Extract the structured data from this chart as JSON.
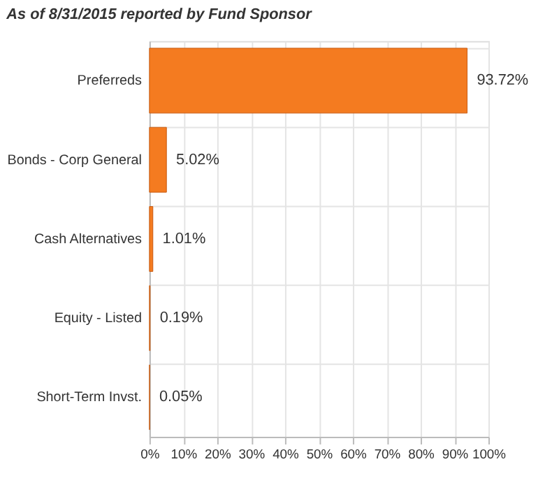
{
  "chart_data": {
    "type": "bar",
    "orientation": "horizontal",
    "title": "As of 8/31/2015 reported by Fund Sponsor",
    "categories": [
      "Preferreds",
      "Bonds - Corp General",
      "Cash Alternatives",
      "Equity - Listed",
      "Short-Term Invst."
    ],
    "values": [
      93.72,
      5.02,
      1.01,
      0.19,
      0.05
    ],
    "value_labels": [
      "93.72%",
      "5.02%",
      "1.01%",
      "0.19%",
      "0.05%"
    ],
    "color": "#f47b20",
    "xlim": [
      0,
      100
    ],
    "xticks": [
      {
        "value": 0,
        "label": "0%"
      },
      {
        "value": 10,
        "label": "10%"
      },
      {
        "value": 20,
        "label": "20%"
      },
      {
        "value": 30,
        "label": "30%"
      },
      {
        "value": 40,
        "label": "40%"
      },
      {
        "value": 50,
        "label": "50%"
      },
      {
        "value": 60,
        "label": "60%"
      },
      {
        "value": 70,
        "label": "70%"
      },
      {
        "value": 80,
        "label": "80%"
      },
      {
        "value": 90,
        "label": "90%"
      },
      {
        "value": 100,
        "label": "100%"
      }
    ],
    "grid": true
  }
}
